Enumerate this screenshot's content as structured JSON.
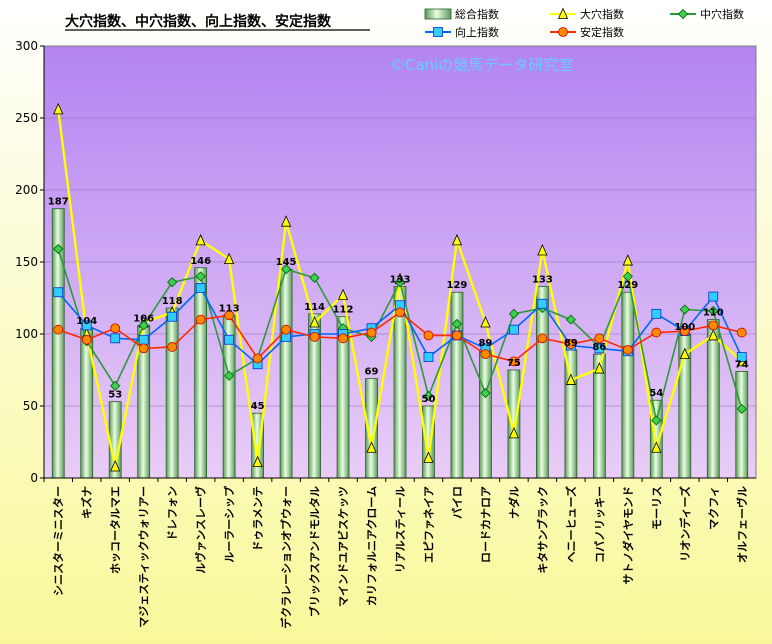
{
  "chart_data": {
    "type": "bar",
    "title": "大穴指数、中穴指数、向上指数、安定指数",
    "watermark": "©Caniの競馬データ研究室",
    "ylim": [
      0,
      300
    ],
    "yticks": [
      0,
      50,
      100,
      150,
      200,
      250,
      300
    ],
    "categories": [
      "シニスターミニスター",
      "キズナ",
      "ホッコータルマエ",
      "マジェスティックウォリアー",
      "ドレフォン",
      "ルヴァンスレーヴ",
      "ルーラーシップ",
      "ドゥラメンテ",
      "デクラレーションオブウォー",
      "ブリックスアンドモルタル",
      "マインドユアビスケッツ",
      "カリフォルニアクローム",
      "リアルスティール",
      "エピファネイア",
      "パイロ",
      "ロードカナロア",
      "ナダル",
      "キタサンブラック",
      "ヘニーヒューズ",
      "コパノリッキー",
      "サトノダイヤモンド",
      "モーリス",
      "リオンディーズ",
      "マクフィ",
      "オルフェーヴル"
    ],
    "series": [
      {
        "name": "総合指数",
        "type": "bar",
        "color": "#a8d8a0",
        "values": [
          187,
          104,
          53,
          106,
          118,
          146,
          113,
          45,
          145,
          114,
          112,
          69,
          133,
          50,
          129,
          89,
          75,
          133,
          89,
          86,
          129,
          54,
          100,
          110,
          74
        ]
      },
      {
        "name": "大穴指数",
        "type": "line",
        "color": "#ffff00",
        "marker": "triangle",
        "values": [
          256,
          100,
          8,
          108,
          115,
          165,
          152,
          11,
          178,
          108,
          127,
          21,
          138,
          14,
          165,
          108,
          31,
          158,
          68,
          76,
          151,
          21,
          86,
          99,
          81
        ]
      },
      {
        "name": "中穴指数",
        "type": "line",
        "color": "#2a9a3a",
        "marker": "diamond",
        "values": [
          159,
          95,
          64,
          106,
          136,
          140,
          71,
          83,
          145,
          139,
          104,
          98,
          136,
          57,
          107,
          59,
          114,
          118,
          110,
          91,
          140,
          40,
          117,
          116,
          48
        ]
      },
      {
        "name": "向上指数",
        "type": "line",
        "color": "#0066ff",
        "marker": "square",
        "values": [
          129,
          106,
          97,
          96,
          112,
          132,
          96,
          79,
          98,
          100,
          100,
          104,
          120,
          84,
          99,
          90,
          103,
          121,
          92,
          90,
          88,
          114,
          102,
          126,
          84
        ]
      },
      {
        "name": "安定指数",
        "type": "line",
        "color": "#ff2a00",
        "marker": "circle",
        "values": [
          103,
          96,
          104,
          90,
          91,
          110,
          113,
          83,
          103,
          98,
          97,
          101,
          115,
          99,
          99,
          86,
          81,
          97,
          93,
          97,
          89,
          101,
          102,
          106,
          101
        ]
      }
    ]
  }
}
